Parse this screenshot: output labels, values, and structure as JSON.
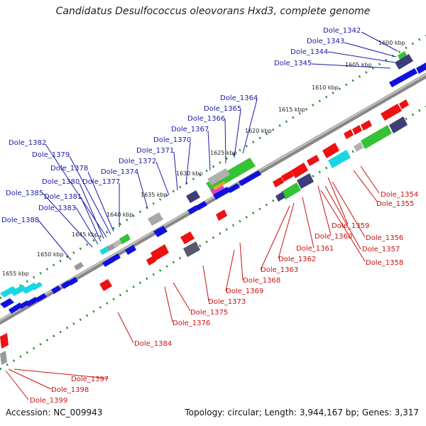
{
  "title": "Candidatus Desulfococcus oleovorans Hxd3, complete genome",
  "footer": {
    "accession": "Accession: NC_009943",
    "summary": "Topology: circular; Length: 3,944,167 bp; Genes: 3,317"
  },
  "colors": {
    "upper_labels": "#1a1aa8",
    "lower_labels": "#cc1111",
    "backbone": "#888888",
    "tick_green": "#1e8a1e",
    "gene_red": "#ee1111",
    "gene_blue": "#1010dd",
    "gene_cyan": "#19d6e0",
    "gene_green": "#36c236",
    "gene_gray": "#9a9a9a",
    "gene_dark": "#3d3d7a"
  },
  "kbp_ticks": [
    "1600 kbp",
    "1605 kbp",
    "1610 kbp",
    "1615 kbp",
    "1620 kbp",
    "1625 kbp",
    "1630 kbp",
    "1635 kbp",
    "1640 kbp",
    "1645 kbp",
    "1650 kbp",
    "1655 kbp"
  ],
  "upper_labels": [
    "Dole_1342",
    "Dole_1343",
    "Dole_1344",
    "Dole_1345",
    "Dole_1364",
    "Dole_1365",
    "Dole_1366",
    "Dole_1367",
    "Dole_1370",
    "Dole_1371",
    "Dole_1372",
    "Dole_1374",
    "Dole_1377",
    "Dole_1378",
    "Dole_1379",
    "Dole_1382",
    "Dole_1380",
    "Dole_1381",
    "Dole_1385",
    "Dole_1383",
    "Dole_1388"
  ],
  "lower_labels": [
    "Dole_1354",
    "Dole_1355",
    "Dole_1359",
    "Dole_1356",
    "Dole_1360",
    "Dole_1357",
    "Dole_1361",
    "Dole_1358",
    "Dole_1362",
    "Dole_1363",
    "Dole_1368",
    "Dole_1369",
    "Dole_1373",
    "Dole_1375",
    "Dole_1376",
    "Dole_1384",
    "Dole_1397",
    "Dole_1398",
    "Dole_1399"
  ]
}
